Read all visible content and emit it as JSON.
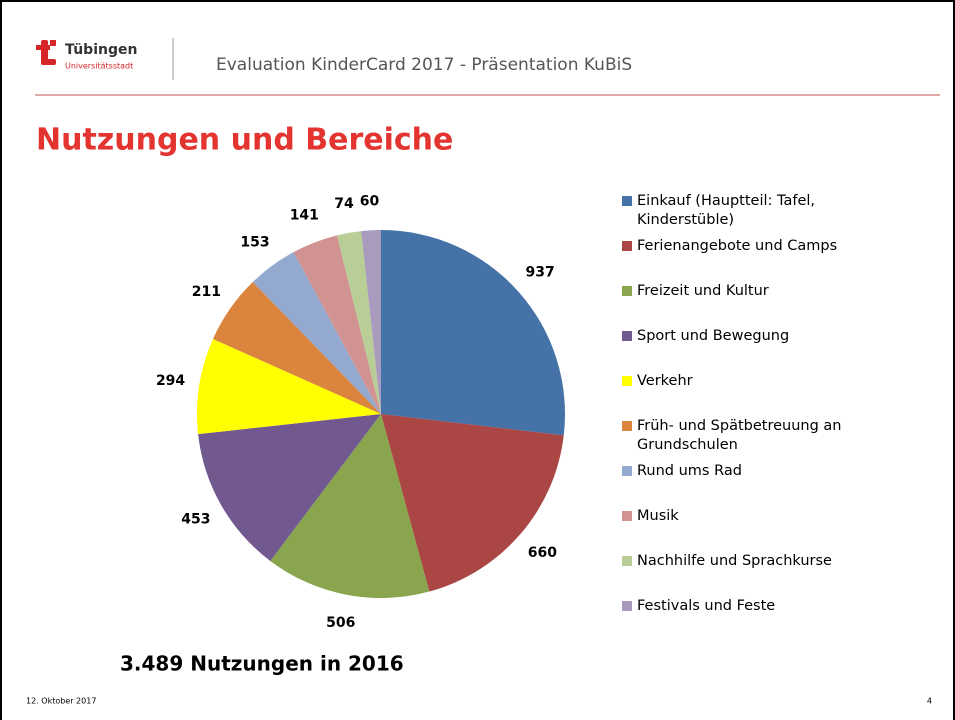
{
  "header": {
    "logo_name": "Tübingen",
    "logo_sub": "Universitätsstadt",
    "title": "Evaluation KinderCard 2017 - Präsentation KuBiS"
  },
  "heading": "Nutzungen und Bereiche",
  "chart_data": {
    "type": "pie",
    "categories": [
      "Einkauf (Hauptteil: Tafel, Kinderstüble)",
      "Ferienangebote und Camps",
      "Freizeit und Kultur",
      "Sport und Bewegung",
      "Verkehr",
      "Früh- und Spätbetreuung an Grundschulen",
      "Rund ums Rad",
      "Musik",
      "Nachhilfe und Sprachkurse",
      "Festivals und Feste"
    ],
    "values": [
      937,
      660,
      506,
      453,
      294,
      211,
      153,
      141,
      74,
      60
    ],
    "colors": [
      "#4572a7",
      "#aa4643",
      "#89a54e",
      "#71588f",
      "#ffff00",
      "#db843d",
      "#93a9cf",
      "#d19392",
      "#b9cd96",
      "#a99bbd"
    ],
    "legend": "right"
  },
  "summary": "3.489 Nutzungen in 2016",
  "footer": {
    "date": "12. Oktober 2017",
    "page": "4"
  }
}
